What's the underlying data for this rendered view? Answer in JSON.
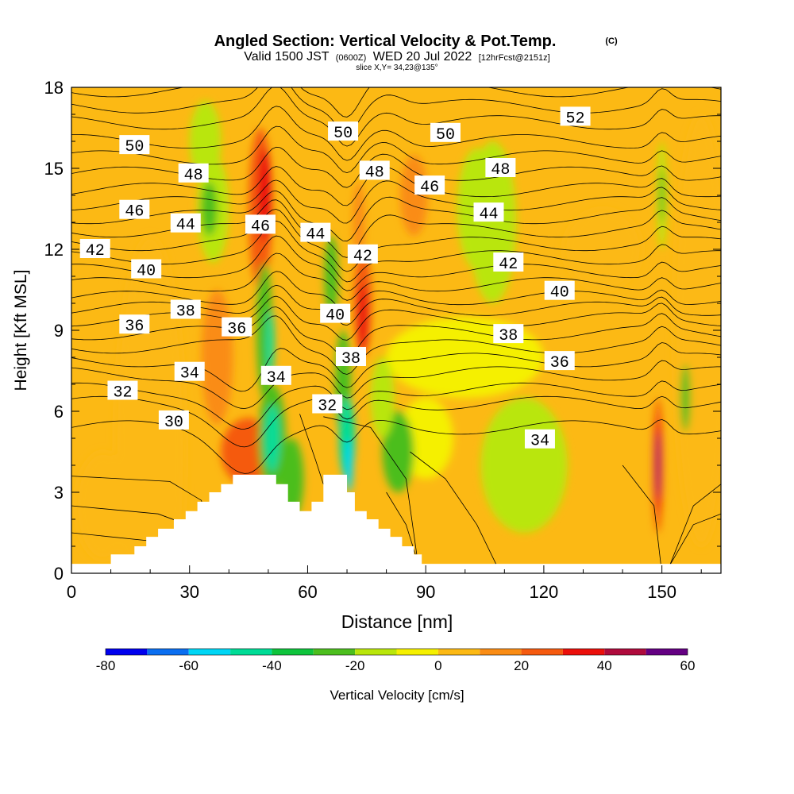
{
  "chart_data": {
    "type": "heatmap",
    "title": "Angled Section: Vertical Velocity & Pot.Temp.",
    "title_unit": "(C)",
    "subtitle_valid": "Valid 1500 JST",
    "subtitle_utc": "(0600Z)",
    "subtitle_date": "WED 20 Jul 2022",
    "subtitle_fcst": "[12hrFcst@2151z]",
    "subtitle_slice": "slice X,Y= 34,23@135°",
    "xlabel": "Distance [nm]",
    "ylabel": "Height [Kft MSL]",
    "xlim": [
      0,
      165
    ],
    "ylim": [
      0,
      18
    ],
    "xticks": [
      0,
      30,
      60,
      90,
      120,
      150
    ],
    "yticks": [
      0,
      3,
      6,
      9,
      12,
      15,
      18
    ],
    "colorbar": {
      "label": "Vertical Velocity [cm/s]",
      "ticks": [
        -80,
        -60,
        -40,
        -20,
        0,
        20,
        40,
        60
      ],
      "bins": [
        {
          "min": -80,
          "max": -70,
          "color": "#0000ee"
        },
        {
          "min": -70,
          "max": -60,
          "color": "#0a6ef0"
        },
        {
          "min": -60,
          "max": -50,
          "color": "#00d6f5"
        },
        {
          "min": -50,
          "max": -40,
          "color": "#00dc96"
        },
        {
          "min": -40,
          "max": -30,
          "color": "#0ec43c"
        },
        {
          "min": -30,
          "max": -20,
          "color": "#4cbe1e"
        },
        {
          "min": -20,
          "max": -10,
          "color": "#b9e60a"
        },
        {
          "min": -10,
          "max": 0,
          "color": "#f5f000"
        },
        {
          "min": 0,
          "max": 10,
          "color": "#fcb914"
        },
        {
          "min": 10,
          "max": 20,
          "color": "#fa8c14"
        },
        {
          "min": 20,
          "max": 30,
          "color": "#f55a0f"
        },
        {
          "min": 30,
          "max": 40,
          "color": "#eb0f0a"
        },
        {
          "min": 40,
          "max": 50,
          "color": "#af0a3c"
        },
        {
          "min": 50,
          "max": 60,
          "color": "#640082"
        }
      ]
    },
    "velocity_features": [
      {
        "x": 20,
        "y": 4.5,
        "w": 18,
        "h": 16,
        "value": 4
      },
      {
        "x": 160,
        "y": 9,
        "w": 14,
        "h": 16,
        "value": 4
      },
      {
        "x": 8,
        "y": 2.5,
        "w": 14,
        "h": 4,
        "value": 5
      },
      {
        "x": 100,
        "y": 8,
        "w": 40,
        "h": 3,
        "value": -4
      },
      {
        "x": 115,
        "y": 4,
        "w": 22,
        "h": 5,
        "value": -12
      },
      {
        "x": 107,
        "y": 13,
        "w": 12,
        "h": 6,
        "value": -12
      },
      {
        "x": 90,
        "y": 5,
        "w": 14,
        "h": 3,
        "value": -4
      },
      {
        "x": 135,
        "y": 12,
        "w": 20,
        "h": 3,
        "value": 5
      },
      {
        "x": 36,
        "y": 13.5,
        "w": 8,
        "h": 4,
        "value": -14
      },
      {
        "x": 35,
        "y": 13.5,
        "w": 4,
        "h": 2,
        "value": -24
      },
      {
        "x": 45,
        "y": 4.5,
        "w": 14,
        "h": 2.5,
        "value": 26
      },
      {
        "x": 37,
        "y": 8,
        "w": 8,
        "h": 5,
        "value": 14
      },
      {
        "x": 48,
        "y": 13.5,
        "w": 6,
        "h": 6,
        "value": 26
      },
      {
        "x": 49,
        "y": 14,
        "w": 3.5,
        "h": 3.5,
        "value": 36
      },
      {
        "x": 51,
        "y": 5,
        "w": 7,
        "h": 4,
        "value": -24
      },
      {
        "x": 51,
        "y": 5,
        "w": 4,
        "h": 2.5,
        "value": -44
      },
      {
        "x": 49,
        "y": 9,
        "w": 4,
        "h": 5,
        "value": -24
      },
      {
        "x": 50.5,
        "y": 8.5,
        "w": 2,
        "h": 2.5,
        "value": -44
      },
      {
        "x": 56,
        "y": 3.5,
        "w": 6,
        "h": 3,
        "value": -24
      },
      {
        "x": 66,
        "y": 11,
        "w": 3.5,
        "h": 3,
        "value": -24
      },
      {
        "x": 69,
        "y": 7,
        "w": 4,
        "h": 4,
        "value": -24
      },
      {
        "x": 70,
        "y": 5,
        "w": 4,
        "h": 3,
        "value": -44
      },
      {
        "x": 70.5,
        "y": 4,
        "w": 2,
        "h": 2,
        "value": -55
      },
      {
        "x": 74,
        "y": 10,
        "w": 4.5,
        "h": 4,
        "value": 26
      },
      {
        "x": 74,
        "y": 9.5,
        "w": 2.5,
        "h": 2.5,
        "value": 36
      },
      {
        "x": 73,
        "y": 13,
        "w": 3,
        "h": 3,
        "value": 14
      },
      {
        "x": 83,
        "y": 4.5,
        "w": 8,
        "h": 3,
        "value": -24
      },
      {
        "x": 79,
        "y": 6.5,
        "w": 6,
        "h": 3,
        "value": -14
      },
      {
        "x": 87,
        "y": 14,
        "w": 7,
        "h": 3,
        "value": 14
      },
      {
        "x": 103,
        "y": 13.5,
        "w": 10,
        "h": 4.5,
        "value": -14
      },
      {
        "x": 34,
        "y": 16,
        "w": 8,
        "h": 3,
        "value": -14
      },
      {
        "x": 150,
        "y": 14,
        "w": 2.5,
        "h": 4,
        "value": -14
      },
      {
        "x": 150,
        "y": 14,
        "w": 1.2,
        "h": 2,
        "value": -24
      },
      {
        "x": 149,
        "y": 4,
        "w": 2.5,
        "h": 5,
        "value": 26
      },
      {
        "x": 149,
        "y": 4,
        "w": 1.5,
        "h": 3.5,
        "value": 36
      },
      {
        "x": 149,
        "y": 4,
        "w": 0.8,
        "h": 2.5,
        "value": 55
      },
      {
        "x": 156,
        "y": 6.5,
        "w": 2.5,
        "h": 2.5,
        "value": -24
      }
    ],
    "terrain": [
      [
        0,
        0.35
      ],
      [
        10,
        0.35
      ],
      [
        10,
        0.7
      ],
      [
        16,
        0.7
      ],
      [
        16,
        1.0
      ],
      [
        19,
        1.0
      ],
      [
        19,
        1.35
      ],
      [
        22,
        1.35
      ],
      [
        22,
        1.65
      ],
      [
        26,
        1.65
      ],
      [
        26,
        2.0
      ],
      [
        29,
        2.0
      ],
      [
        29,
        2.3
      ],
      [
        32,
        2.3
      ],
      [
        32,
        2.65
      ],
      [
        35,
        2.65
      ],
      [
        35,
        3.0
      ],
      [
        38,
        3.0
      ],
      [
        38,
        3.3
      ],
      [
        41,
        3.3
      ],
      [
        41,
        3.65
      ],
      [
        52,
        3.65
      ],
      [
        52,
        3.3
      ],
      [
        55,
        3.3
      ],
      [
        55,
        2.65
      ],
      [
        58,
        2.65
      ],
      [
        58,
        2.3
      ],
      [
        61,
        2.3
      ],
      [
        61,
        2.65
      ],
      [
        64,
        2.65
      ],
      [
        64,
        3.65
      ],
      [
        70,
        3.65
      ],
      [
        70,
        3.0
      ],
      [
        72,
        3.0
      ],
      [
        72,
        2.3
      ],
      [
        75,
        2.3
      ],
      [
        75,
        2.0
      ],
      [
        78,
        2.0
      ],
      [
        78,
        1.65
      ],
      [
        81,
        1.65
      ],
      [
        81,
        1.35
      ],
      [
        84,
        1.35
      ],
      [
        84,
        1.0
      ],
      [
        87,
        1.0
      ],
      [
        87,
        0.7
      ],
      [
        89,
        0.7
      ],
      [
        89,
        0.35
      ],
      [
        165,
        0.35
      ]
    ],
    "theta_levels": [
      30,
      31,
      32,
      33,
      34,
      35,
      36,
      37,
      38,
      39,
      40,
      41,
      42,
      43,
      44,
      45,
      46,
      47,
      48,
      49,
      50,
      51,
      52,
      53
    ],
    "theta_base_heights": [
      5.4,
      6.3,
      6.8,
      7.4,
      7.9,
      8.4,
      8.9,
      9.4,
      9.8,
      10.2,
      10.7,
      11.2,
      11.7,
      12.2,
      12.7,
      13.2,
      13.7,
      14.2,
      14.8,
      15.4,
      16.0,
      16.7,
      17.3,
      17.9
    ],
    "contour_labels": [
      {
        "text": "50",
        "x": 16,
        "y": 15.85
      },
      {
        "text": "48",
        "x": 31,
        "y": 14.8
      },
      {
        "text": "46",
        "x": 16,
        "y": 13.45
      },
      {
        "text": "44",
        "x": 29,
        "y": 12.95
      },
      {
        "text": "42",
        "x": 6,
        "y": 12.0
      },
      {
        "text": "40",
        "x": 19,
        "y": 11.25
      },
      {
        "text": "38",
        "x": 29,
        "y": 9.75
      },
      {
        "text": "36",
        "x": 16,
        "y": 9.2
      },
      {
        "text": "36",
        "x": 42,
        "y": 9.1
      },
      {
        "text": "34",
        "x": 30,
        "y": 7.45
      },
      {
        "text": "32",
        "x": 13,
        "y": 6.75
      },
      {
        "text": "30",
        "x": 26,
        "y": 5.65
      },
      {
        "text": "46",
        "x": 48,
        "y": 12.9
      },
      {
        "text": "44",
        "x": 62,
        "y": 12.6
      },
      {
        "text": "34",
        "x": 52,
        "y": 7.3
      },
      {
        "text": "32",
        "x": 65,
        "y": 6.25
      },
      {
        "text": "40",
        "x": 67,
        "y": 9.6
      },
      {
        "text": "38",
        "x": 71,
        "y": 8.0
      },
      {
        "text": "42",
        "x": 74,
        "y": 11.8
      },
      {
        "text": "48",
        "x": 77,
        "y": 14.9
      },
      {
        "text": "46",
        "x": 91,
        "y": 14.35
      },
      {
        "text": "50",
        "x": 69,
        "y": 16.35
      },
      {
        "text": "50",
        "x": 95,
        "y": 16.3
      },
      {
        "text": "48",
        "x": 109,
        "y": 15.0
      },
      {
        "text": "44",
        "x": 106,
        "y": 13.35
      },
      {
        "text": "42",
        "x": 111,
        "y": 11.5
      },
      {
        "text": "40",
        "x": 124,
        "y": 10.45
      },
      {
        "text": "38",
        "x": 111,
        "y": 8.85
      },
      {
        "text": "36",
        "x": 124,
        "y": 7.85
      },
      {
        "text": "34",
        "x": 119,
        "y": 4.95
      },
      {
        "text": "52",
        "x": 128,
        "y": 16.9
      }
    ]
  }
}
